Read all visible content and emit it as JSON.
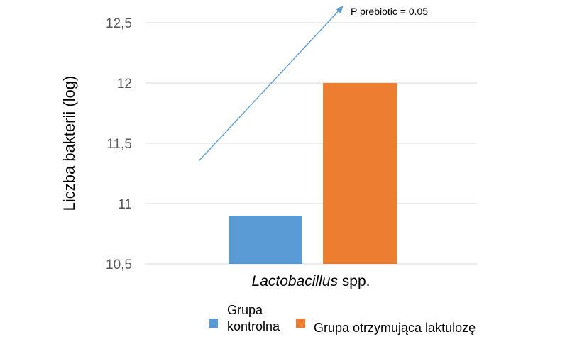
{
  "chart_data": {
    "type": "bar",
    "categories": [
      "Lactobacillus spp."
    ],
    "category_label": {
      "italic": "Lactobacillus",
      "normal": " spp."
    },
    "series": [
      {
        "name": "Grupa kontrolna",
        "name_lines": [
          "Grupa",
          "kontrolna"
        ],
        "values": [
          10.9
        ],
        "color": "#5B9BD5"
      },
      {
        "name": "Grupa otrzymująca laktulozę",
        "values": [
          12.0
        ],
        "color": "#ED7D31"
      }
    ],
    "title": "",
    "xlabel": "",
    "ylabel": "Liczba bakterii (log)",
    "ylim": [
      10.5,
      12.5
    ],
    "yticks": [
      "10,5",
      "11",
      "11,5",
      "12",
      "12,5"
    ],
    "ytick_values": [
      10.5,
      11,
      11.5,
      12,
      12.5
    ],
    "grid": true,
    "legend": "bottom",
    "annotation": {
      "text": "P prebiotic = 0.05",
      "arrow_color": "#5B9BD5"
    }
  }
}
